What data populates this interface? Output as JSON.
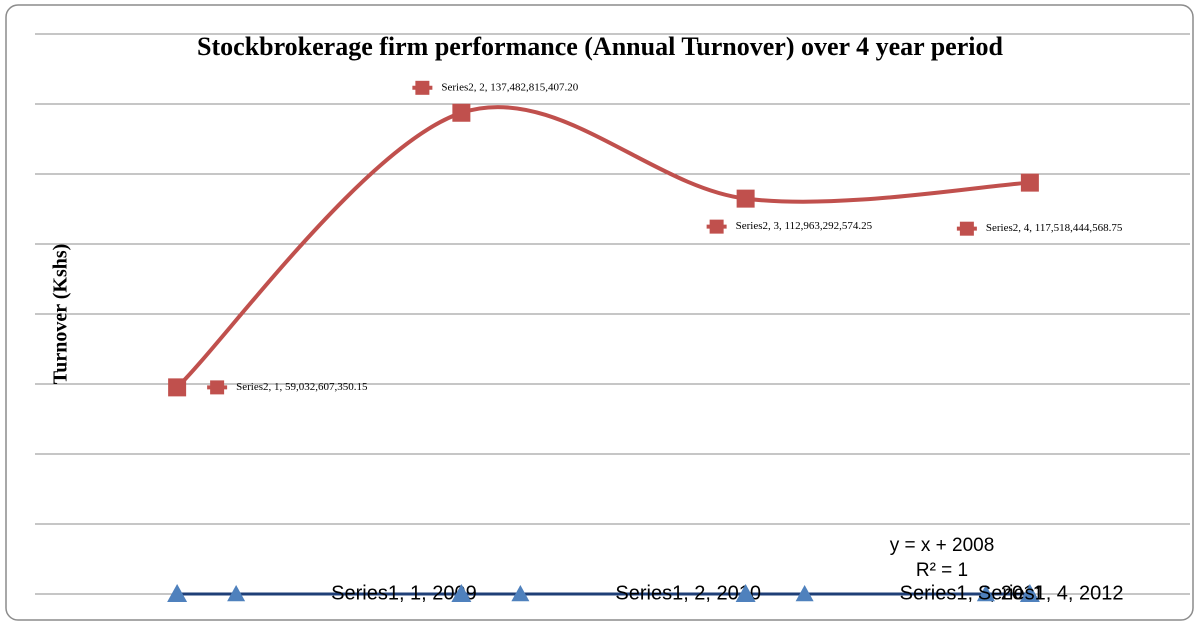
{
  "chart_data": {
    "type": "line",
    "title": "Stockbrokerage firm performance (Annual Turnover) over 4 year period",
    "y_label": "Turnover (Kshs)",
    "x": [
      1,
      2,
      3,
      4
    ],
    "xlim": [
      0.5,
      4.5
    ],
    "ylim": [
      0,
      160000000000
    ],
    "yticks": [
      0,
      20000000000,
      40000000000,
      60000000000,
      80000000000,
      100000000000,
      120000000000,
      140000000000,
      160000000000
    ],
    "grid": true,
    "series": [
      {
        "name": "Series1",
        "color": "#4f81bd",
        "line_color": "#1f3f77",
        "marker": "triangle",
        "smooth": false,
        "values": [
          2009,
          2010,
          2011,
          2012
        ],
        "value_labels": [
          "Series1, 1, 2009",
          "Series1, 2, 2010",
          "Series1, 3, 2011",
          "Series1, 4, 2012"
        ]
      },
      {
        "name": "Series2",
        "color": "#c0504d",
        "marker": "square",
        "smooth": true,
        "values": [
          59032607350.15,
          137482815407.2,
          112963292574.25,
          117518444568.75
        ],
        "value_labels": [
          "Series2, 1, 59,032,607,350.15",
          "Series2, 2, 137,482,815,407.20",
          "Series2, 3, 112,963,292,574.25",
          "Series2, 4, 117,518,444,568.75"
        ]
      }
    ],
    "annotations": [
      "y = x + 2008",
      "R² = 1"
    ]
  }
}
